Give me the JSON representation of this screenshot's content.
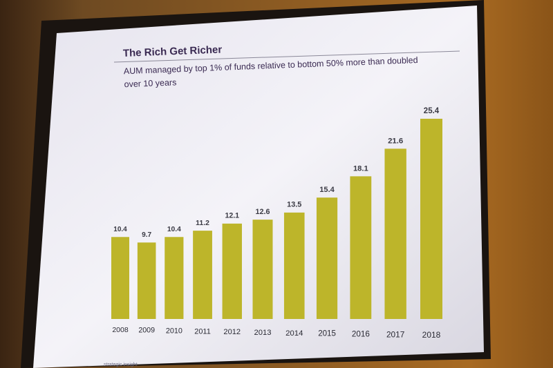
{
  "chart_data": {
    "type": "bar",
    "title": "The Rich Get Richer",
    "subtitle": [
      "AUM managed by top 1% of funds relative to bottom 50% more than doubled",
      "over 10 years"
    ],
    "categories": [
      "2008",
      "2009",
      "2010",
      "2011",
      "2012",
      "2013",
      "2014",
      "2015",
      "2016",
      "2017",
      "2018"
    ],
    "values": [
      10.4,
      9.7,
      10.4,
      11.2,
      12.1,
      12.6,
      13.5,
      15.4,
      18.1,
      21.6,
      25.4
    ],
    "color": "#bdb52a",
    "footer": "strategic insight"
  }
}
